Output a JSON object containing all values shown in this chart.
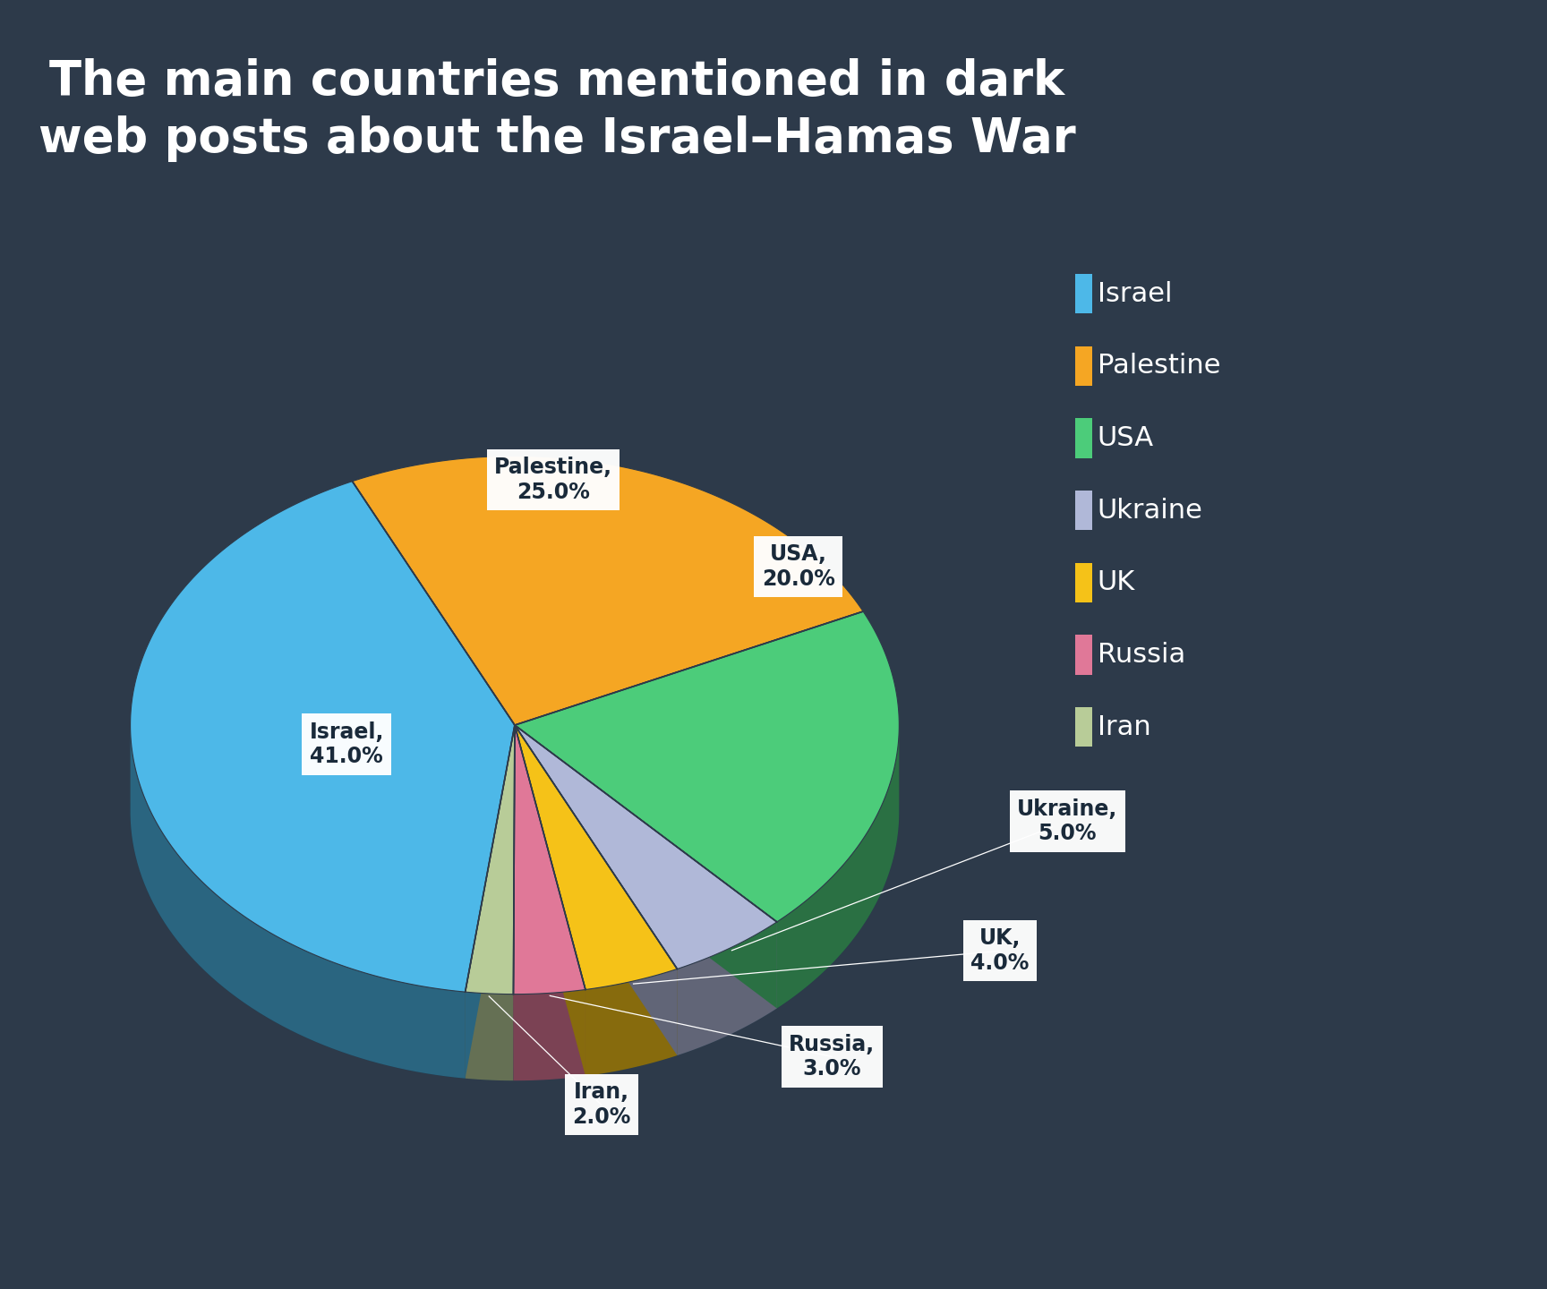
{
  "title": "The main countries mentioned in dark\nweb posts about the Israel–Hamas War",
  "background_color": "#2d3a4a",
  "slices": [
    {
      "label": "Israel",
      "value": 41.0,
      "color": "#4db8e8"
    },
    {
      "label": "Palestine",
      "value": 25.0,
      "color": "#f5a623"
    },
    {
      "label": "USA",
      "value": 20.0,
      "color": "#4ccc7a"
    },
    {
      "label": "Ukraine",
      "value": 5.0,
      "color": "#b0b8d8"
    },
    {
      "label": "UK",
      "value": 4.0,
      "color": "#f5c218"
    },
    {
      "label": "Russia",
      "value": 3.0,
      "color": "#e07898"
    },
    {
      "label": "Iran",
      "value": 2.0,
      "color": "#b8cc98"
    }
  ],
  "legend_colors": [
    "#4db8e8",
    "#f5a623",
    "#4ccc7a",
    "#b0b8d8",
    "#f5c218",
    "#e07898",
    "#b8cc98"
  ],
  "legend_labels": [
    "Israel",
    "Palestine",
    "USA",
    "Ukraine",
    "UK",
    "Russia",
    "Iran"
  ],
  "title_color": "#ffffff",
  "title_fontsize": 38,
  "label_fontsize": 17,
  "legend_fontsize": 22,
  "depth_color": "#3a88a8",
  "depth_color2": "#5ab0d0"
}
